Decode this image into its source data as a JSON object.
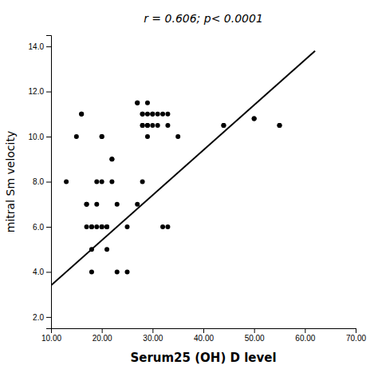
{
  "chart_data": {
    "type": "scatter",
    "title": "r = 0.606; p< 0.0001",
    "x_label": "Serum25 (OH) D level",
    "y_label": "mitral Sm velocity",
    "series": [
      {
        "type": "scatter",
        "color": "#000000",
        "x": [
          13,
          15,
          16,
          16,
          17,
          17,
          17,
          18,
          18,
          18,
          18,
          19,
          19,
          19,
          20,
          20,
          20,
          20,
          20,
          21,
          21,
          21,
          22,
          22,
          22,
          23,
          23,
          25,
          25,
          27,
          27,
          27,
          28,
          28,
          28,
          28,
          28,
          29,
          29,
          29,
          29,
          29,
          30,
          30,
          30,
          31,
          31,
          32,
          32,
          33,
          33,
          33,
          35,
          44,
          44,
          50,
          50,
          55,
          55
        ],
        "values": [
          8.0,
          10.0,
          11.0,
          11.0,
          7.0,
          7.0,
          6.0,
          6.0,
          6.0,
          5.0,
          4.0,
          8.0,
          7.0,
          6.0,
          10.0,
          10.0,
          8.0,
          6.0,
          6.0,
          6.0,
          6.0,
          5.0,
          9.0,
          9.0,
          8.0,
          7.0,
          4.0,
          6.0,
          4.0,
          11.5,
          11.5,
          7.0,
          11.0,
          11.0,
          10.5,
          10.5,
          8.0,
          11.5,
          11.0,
          10.5,
          10.5,
          10.0,
          11.0,
          11.0,
          10.5,
          11.0,
          10.5,
          11.0,
          6.0,
          11.0,
          10.5,
          6.0,
          10.0,
          10.5,
          10.5,
          10.8,
          10.8,
          10.5,
          10.5
        ]
      },
      {
        "type": "line",
        "color": "#000000",
        "x": [
          10,
          62
        ],
        "values": [
          3.4,
          13.8
        ]
      }
    ],
    "xlim": [
      10,
      70
    ],
    "ylim": [
      1.5,
      14.5
    ],
    "xticks": [
      {
        "value": 10,
        "label": "10.00"
      },
      {
        "value": 20,
        "label": "20.00"
      },
      {
        "value": 30,
        "label": "30.00"
      },
      {
        "value": 40,
        "label": "40.00"
      },
      {
        "value": 50,
        "label": "50.00"
      },
      {
        "value": 60,
        "label": "60.00"
      },
      {
        "value": 70,
        "label": "70.00"
      }
    ],
    "yticks": [
      {
        "value": 2,
        "label": "2.0"
      },
      {
        "value": 4,
        "label": "4.0"
      },
      {
        "value": 6,
        "label": "6.0"
      },
      {
        "value": 8,
        "label": "8.0"
      },
      {
        "value": 10,
        "label": "10.0"
      },
      {
        "value": 12,
        "label": "12.0"
      },
      {
        "value": 14,
        "label": "14.0"
      }
    ]
  }
}
